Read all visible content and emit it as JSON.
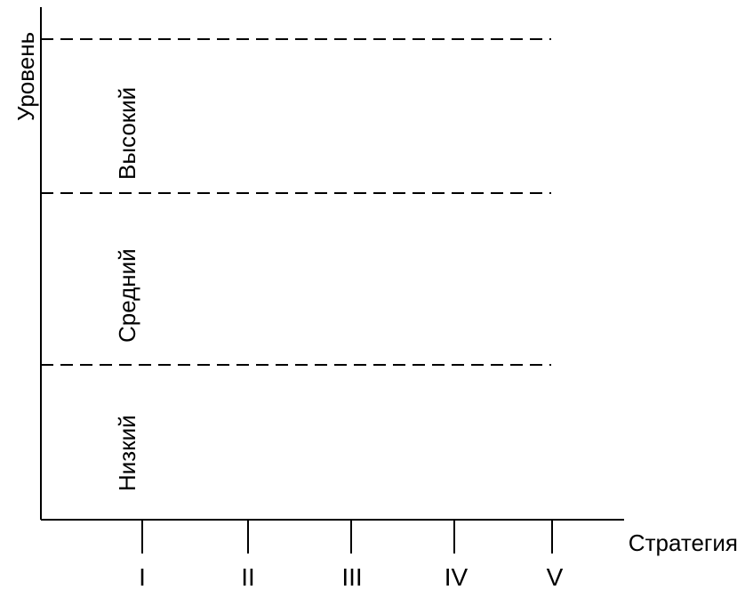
{
  "axes": {
    "y_title": "Уровень",
    "x_title": "Стратегия"
  },
  "levels": [
    {
      "label": "Низкий"
    },
    {
      "label": "Средний"
    },
    {
      "label": "Высокий"
    }
  ],
  "strategies": [
    "I",
    "II",
    "III",
    "IV",
    "V"
  ],
  "colors": {
    "line": "#000000",
    "background": "#ffffff"
  }
}
